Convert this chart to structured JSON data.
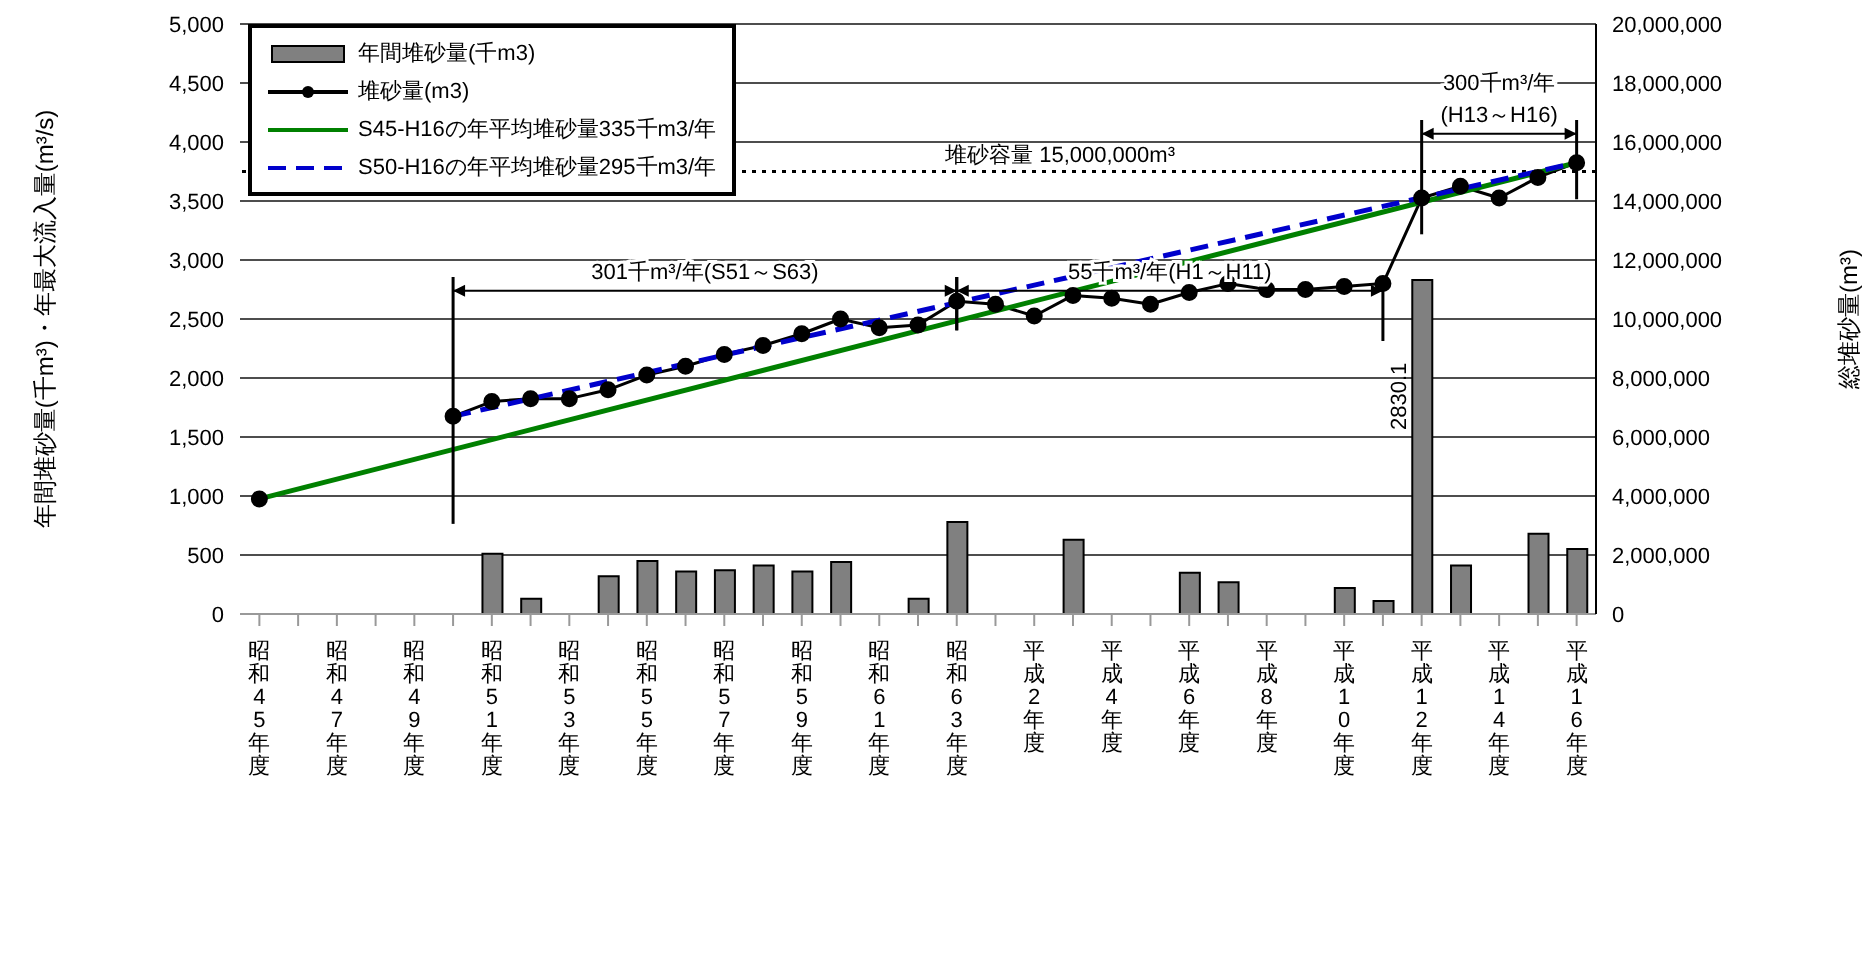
{
  "chart_data": {
    "type": "bar",
    "categories": [
      "昭和45年度",
      null,
      "昭和47年度",
      null,
      "昭和49年度",
      null,
      "昭和51年度",
      null,
      "昭和53年度",
      null,
      "昭和55年度",
      null,
      "昭和57年度",
      null,
      "昭和59年度",
      null,
      "昭和61年度",
      null,
      "昭和63年度",
      null,
      "平成2年度",
      null,
      "平成4年度",
      null,
      "平成6年度",
      null,
      "平成8年度",
      null,
      "平成10年度",
      null,
      "平成12年度",
      null,
      "平成14年度",
      null,
      "平成16年度"
    ],
    "series": [
      {
        "name": "年間堆砂量(千m3)",
        "color": "#808080",
        "values": [
          null,
          null,
          null,
          null,
          null,
          null,
          510,
          130,
          null,
          320,
          450,
          360,
          370,
          410,
          360,
          440,
          null,
          130,
          780,
          null,
          null,
          630,
          null,
          null,
          350,
          270,
          null,
          null,
          220,
          110,
          2830.1,
          410,
          null,
          680,
          550
        ],
        "value_labels": [
          null,
          null,
          null,
          null,
          null,
          null,
          null,
          null,
          null,
          null,
          null,
          null,
          null,
          null,
          null,
          null,
          null,
          null,
          null,
          null,
          null,
          null,
          null,
          null,
          null,
          null,
          null,
          null,
          null,
          null,
          "2830.1",
          null,
          null,
          null,
          null
        ]
      },
      {
        "name": "堆砂量(m3)",
        "type": "line",
        "axis": "y2",
        "color": "#000000",
        "marker": "circle",
        "values": [
          3900000,
          null,
          null,
          null,
          null,
          6700000,
          7200000,
          7300000,
          7300000,
          7600000,
          8100000,
          8400000,
          8800000,
          9100000,
          9500000,
          10000000,
          9700000,
          9800000,
          10600000,
          10500000,
          10100000,
          10800000,
          10700000,
          10500000,
          10900000,
          11200000,
          11000000,
          11000000,
          11100000,
          11200000,
          14100000,
          14500000,
          14100000,
          14800000,
          15300000
        ]
      },
      {
        "name": "S45-H16の年平均堆砂量335千m3/年",
        "type": "line",
        "axis": "y2",
        "color": "#008000",
        "values": [
          3900000,
          null,
          null,
          null,
          null,
          null,
          null,
          null,
          null,
          null,
          null,
          null,
          null,
          null,
          null,
          null,
          null,
          null,
          null,
          null,
          null,
          null,
          null,
          null,
          null,
          null,
          null,
          null,
          null,
          null,
          null,
          null,
          null,
          null,
          15300000
        ]
      },
      {
        "name": "S50-H16の年平均堆砂量295千m3/年",
        "type": "line",
        "axis": "y2",
        "color": "#0000cc",
        "line_style": "dashed",
        "values": [
          null,
          null,
          null,
          null,
          null,
          6700000,
          null,
          null,
          null,
          null,
          null,
          null,
          null,
          null,
          null,
          null,
          null,
          null,
          null,
          null,
          null,
          null,
          null,
          null,
          null,
          null,
          null,
          null,
          null,
          null,
          null,
          null,
          null,
          null,
          15300000
        ]
      }
    ],
    "ylabel": "年間堆砂量(千m³)・年最大流入量(m³/s)",
    "y2label": "総堆砂量(m³)",
    "ylim": [
      0,
      5000
    ],
    "yticks": [
      0,
      500,
      {
        "value": 1000,
        "label": "1,000"
      },
      {
        "value": 1500,
        "label": "1,500"
      },
      {
        "value": 2000,
        "label": "2,000"
      },
      {
        "value": 2500,
        "label": "2,500"
      },
      {
        "value": 3000,
        "label": "3,000"
      },
      {
        "value": 3500,
        "label": "3,500"
      },
      {
        "value": 4000,
        "label": "4,000"
      },
      {
        "value": 4500,
        "label": "4,500"
      },
      {
        "value": 5000,
        "label": "5,000"
      }
    ],
    "y2lim": [
      0,
      20000000
    ],
    "y2ticks": [
      0,
      {
        "value": 2000000,
        "label": "2,000,000"
      },
      {
        "value": 4000000,
        "label": "4,000,000"
      },
      {
        "value": 6000000,
        "label": "6,000,000"
      },
      {
        "value": 8000000,
        "label": "8,000,000"
      },
      {
        "value": 10000000,
        "label": "10,000,000"
      },
      {
        "value": 12000000,
        "label": "12,000,000"
      },
      {
        "value": 14000000,
        "label": "14,000,000"
      },
      {
        "value": 16000000,
        "label": "16,000,000"
      },
      {
        "value": 18000000,
        "label": "18,000,000"
      },
      {
        "value": 20000000,
        "label": "20,000,000"
      }
    ],
    "ref_lines": [
      {
        "axis": "y2",
        "value": 15000000,
        "label": "堆砂容量 15,000,000m³",
        "color": "#000000",
        "line_style": "dotted"
      }
    ],
    "annotations": [
      "301千m³/年(S51～S63)",
      "55千m³/年(H1～H11)",
      "300千m³/年\n(H13～H16)"
    ],
    "grid": "y",
    "legend": "top left"
  }
}
